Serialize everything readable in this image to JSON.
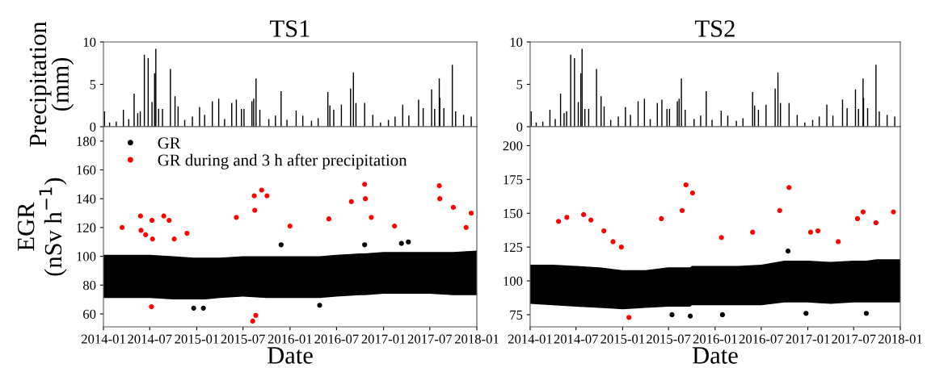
{
  "chart_data": [
    {
      "type": "bar",
      "title": "TS1",
      "ylabel": "Precipitation\n(mm)",
      "color": "#000000",
      "tick_labels": "y",
      "x": [
        "2014-01-05",
        "2014-01-25",
        "2014-02-20",
        "2014-03-20",
        "2014-04-10",
        "2014-05-01",
        "2014-05-15",
        "2014-05-25",
        "2014-06-10",
        "2014-06-25",
        "2014-07-10",
        "2014-07-20",
        "2014-07-25",
        "2014-08-05",
        "2014-08-20",
        "2014-09-20",
        "2014-10-08",
        "2014-10-20",
        "2014-11-15",
        "2014-12-15",
        "2015-01-12",
        "2015-02-01",
        "2015-03-03",
        "2015-03-28",
        "2015-04-20",
        "2015-05-18",
        "2015-06-05",
        "2015-06-25",
        "2015-07-05",
        "2015-08-05",
        "2015-08-12",
        "2015-08-21",
        "2015-09-05",
        "2015-10-10",
        "2015-11-05",
        "2015-11-27",
        "2015-12-20",
        "2016-01-25",
        "2016-02-20",
        "2016-03-25",
        "2016-04-20",
        "2016-05-28",
        "2016-06-05",
        "2016-06-20",
        "2016-07-20",
        "2016-08-25",
        "2016-09-05",
        "2016-09-15",
        "2016-10-19",
        "2016-11-20",
        "2016-12-20",
        "2017-01-20",
        "2017-02-15",
        "2017-03-17",
        "2017-04-10",
        "2017-05-18",
        "2017-06-05",
        "2017-07-08",
        "2017-07-20",
        "2017-08-07",
        "2017-08-09",
        "2017-08-25",
        "2017-09-27",
        "2017-10-10",
        "2017-11-10",
        "2017-12-10"
      ],
      "values": [
        1.8,
        0.5,
        0.6,
        2.0,
        0.9,
        3.9,
        1.6,
        1.8,
        8.5,
        8.1,
        2.9,
        6.3,
        9.2,
        2.1,
        2.1,
        6.8,
        3.6,
        2.4,
        0.8,
        1.2,
        2.3,
        1.4,
        3.0,
        3.3,
        0.9,
        2.8,
        3.2,
        2.1,
        2.1,
        3.0,
        3.3,
        5.7,
        2.0,
        0.9,
        1.3,
        4.2,
        0.8,
        1.9,
        1.3,
        0.7,
        1.0,
        4.1,
        2.5,
        2.0,
        2.6,
        4.5,
        6.4,
        2.8,
        2.8,
        1.4,
        0.5,
        0.8,
        1.2,
        2.6,
        1.3,
        3.2,
        2.2,
        4.4,
        2.1,
        5.7,
        3.4,
        2.2,
        7.3,
        1.8,
        1.4,
        1.2
      ],
      "xlim": [
        "2014-01-01",
        "2018-01-01"
      ],
      "ylim": [
        0,
        10
      ],
      "yticks": [
        0,
        5,
        10
      ]
    },
    {
      "type": "scatter",
      "xlabel": "Date",
      "ylabel": "EGR\n(nSv h$^{−1}$)",
      "legend": "top left",
      "marker": "circle",
      "xlim": [
        "2014-01-01",
        "2018-01-01"
      ],
      "xticks": [
        "2014-01",
        "2014-07",
        "2015-01",
        "2015-07",
        "2016-01",
        "2016-07",
        "2017-01",
        "2017-07",
        "2018-01"
      ],
      "ylim": [
        51,
        190
      ],
      "yticks": [
        60,
        80,
        100,
        120,
        140,
        160,
        180
      ],
      "series": [
        {
          "name": "GR",
          "color": "#000000",
          "x": [
            "2014-01-01",
            "2014-04-01",
            "2014-07-01",
            "2014-10-01",
            "2014-12-20",
            "2015-01-01",
            "2015-01-27",
            "2015-04-01",
            "2015-07-01",
            "2015-10-01",
            "2015-11-27",
            "2016-01-01",
            "2016-04-01",
            "2016-04-26",
            "2016-07-01",
            "2016-10-01",
            "2016-10-19",
            "2017-01-01",
            "2017-03-12",
            "2017-04-01",
            "2017-04-08",
            "2017-07-01",
            "2017-10-01",
            "2018-01-01"
          ],
          "values": [
            null,
            null,
            null,
            null,
            64,
            null,
            64,
            null,
            null,
            null,
            108,
            null,
            null,
            66,
            null,
            null,
            108,
            null,
            109,
            null,
            110,
            null,
            null,
            null
          ],
          "lower": [
            71,
            71,
            71,
            70,
            70,
            70,
            70,
            71,
            72,
            71,
            71,
            71,
            71,
            71,
            72,
            73,
            73,
            74,
            74,
            74,
            74,
            74,
            73,
            73
          ],
          "upper": [
            101,
            101,
            101,
            100,
            99,
            99,
            99,
            99,
            100,
            100,
            100,
            100,
            100,
            100,
            101,
            102,
            102,
            103,
            103,
            103,
            103,
            103,
            103,
            104
          ]
        },
        {
          "name": "GR during and 3 h after precipitation",
          "color": "#ff0000",
          "x": [
            "2014-03-15",
            "2014-05-26",
            "2014-05-28",
            "2014-06-15",
            "2014-07-10",
            "2014-07-12",
            "2014-08-25",
            "2014-09-15",
            "2014-10-05",
            "2014-11-24",
            "2014-07-08",
            "2015-06-05",
            "2015-08-14",
            "2015-08-16",
            "2015-09-12",
            "2015-10-03",
            "2015-08-08",
            "2015-08-20",
            "2016-01-01",
            "2016-06-01",
            "2016-08-28",
            "2016-10-19",
            "2016-10-22",
            "2016-11-14",
            "2017-02-13",
            "2017-08-07",
            "2017-08-09",
            "2017-10-01",
            "2017-11-20",
            "2017-12-10"
          ],
          "values": [
            120,
            128,
            118,
            115,
            125,
            112,
            128,
            125,
            112,
            116,
            65,
            127,
            142,
            132,
            146,
            142,
            55,
            59,
            121,
            126,
            138,
            150,
            140,
            127,
            121,
            149,
            140,
            134,
            120,
            130
          ]
        }
      ]
    },
    {
      "type": "bar",
      "title": "TS2",
      "color": "#000000",
      "tick_labels": "y",
      "x": [
        "2014-01-05",
        "2014-01-25",
        "2014-02-20",
        "2014-03-20",
        "2014-04-10",
        "2014-05-01",
        "2014-05-15",
        "2014-05-25",
        "2014-06-10",
        "2014-06-25",
        "2014-07-10",
        "2014-07-20",
        "2014-07-25",
        "2014-08-05",
        "2014-08-20",
        "2014-09-20",
        "2014-10-08",
        "2014-10-20",
        "2014-11-15",
        "2014-12-15",
        "2015-01-12",
        "2015-02-01",
        "2015-03-03",
        "2015-03-28",
        "2015-04-20",
        "2015-05-18",
        "2015-06-05",
        "2015-06-25",
        "2015-07-05",
        "2015-08-05",
        "2015-08-12",
        "2015-08-21",
        "2015-09-05",
        "2015-10-10",
        "2015-11-05",
        "2015-11-27",
        "2015-12-20",
        "2016-01-25",
        "2016-02-20",
        "2016-03-25",
        "2016-04-20",
        "2016-05-28",
        "2016-06-05",
        "2016-06-20",
        "2016-07-20",
        "2016-08-25",
        "2016-09-05",
        "2016-09-15",
        "2016-10-19",
        "2016-11-20",
        "2016-12-20",
        "2017-01-20",
        "2017-02-15",
        "2017-03-17",
        "2017-04-10",
        "2017-05-18",
        "2017-06-05",
        "2017-07-08",
        "2017-07-20",
        "2017-08-07",
        "2017-08-09",
        "2017-08-25",
        "2017-09-27",
        "2017-10-10",
        "2017-11-10",
        "2017-12-10"
      ],
      "values": [
        1.8,
        0.5,
        0.6,
        2.0,
        0.9,
        3.9,
        1.6,
        1.8,
        8.5,
        8.1,
        2.9,
        6.3,
        9.2,
        2.1,
        2.1,
        6.8,
        3.6,
        2.4,
        0.8,
        1.2,
        2.3,
        1.4,
        3.0,
        3.3,
        0.9,
        2.8,
        3.2,
        2.1,
        2.1,
        3.0,
        3.3,
        5.7,
        2.0,
        0.9,
        1.3,
        4.2,
        0.8,
        1.9,
        1.3,
        0.7,
        1.0,
        4.1,
        2.5,
        2.0,
        2.6,
        4.5,
        6.4,
        2.8,
        2.8,
        1.4,
        0.5,
        0.8,
        1.2,
        2.6,
        1.3,
        3.2,
        2.2,
        4.4,
        2.1,
        5.7,
        3.4,
        2.2,
        7.3,
        1.8,
        1.4,
        1.2
      ],
      "xlim": [
        "2014-01-01",
        "2018-01-01"
      ],
      "ylim": [
        0,
        10
      ],
      "yticks": [
        0,
        5,
        10
      ]
    },
    {
      "type": "scatter",
      "xlabel": "Date",
      "marker": "circle",
      "xlim": [
        "2014-01-01",
        "2018-01-01"
      ],
      "xticks": [
        "2014-01",
        "2014-07",
        "2015-01",
        "2015-07",
        "2016-01",
        "2016-07",
        "2017-01",
        "2017-07",
        "2018-01"
      ],
      "ylim": [
        66,
        214
      ],
      "yticks": [
        75,
        100,
        125,
        150,
        175,
        200
      ],
      "series": [
        {
          "color": "#000000",
          "x": [
            "2014-01-01",
            "2014-04-01",
            "2014-07-01",
            "2014-10-01",
            "2015-01-01",
            "2015-04-01",
            "2015-07-01",
            "2015-07-15",
            "2015-09-25",
            "2015-10-01",
            "2016-01-01",
            "2016-01-30",
            "2016-04-01",
            "2016-07-01",
            "2016-10-01",
            "2016-10-15",
            "2016-12-25",
            "2017-01-01",
            "2017-04-01",
            "2017-07-01",
            "2017-08-20",
            "2017-10-01",
            "2018-01-01"
          ],
          "values": [
            null,
            null,
            null,
            null,
            null,
            null,
            null,
            75,
            74,
            null,
            null,
            75,
            null,
            null,
            null,
            122,
            76,
            null,
            null,
            null,
            76,
            null,
            null
          ],
          "lower": [
            83,
            82,
            81,
            80,
            79,
            80,
            81,
            81,
            81,
            82,
            82,
            82,
            82,
            82,
            84,
            84,
            84,
            84,
            83,
            84,
            84,
            84,
            84
          ],
          "upper": [
            112,
            112,
            111,
            110,
            108,
            108,
            110,
            110,
            110,
            111,
            111,
            111,
            111,
            112,
            115,
            115,
            115,
            115,
            114,
            115,
            115,
            116,
            116
          ]
        },
        {
          "color": "#ff0000",
          "x": [
            "2014-04-23",
            "2014-05-26",
            "2014-07-31",
            "2014-08-29",
            "2014-10-19",
            "2014-11-24",
            "2014-12-27",
            "2015-06-03",
            "2015-08-24",
            "2015-09-08",
            "2015-10-04",
            "2016-01-26",
            "2016-05-28",
            "2016-09-12",
            "2016-10-19",
            "2017-01-12",
            "2017-02-10",
            "2017-05-01",
            "2017-07-16",
            "2017-08-07",
            "2017-09-27",
            "2017-12-05",
            "2015-01-26"
          ],
          "values": [
            144,
            147,
            149,
            145,
            137,
            129,
            125,
            146,
            152,
            171,
            165,
            132,
            136,
            152,
            169,
            136,
            137,
            129,
            146,
            151,
            143,
            151,
            73
          ]
        }
      ]
    }
  ]
}
